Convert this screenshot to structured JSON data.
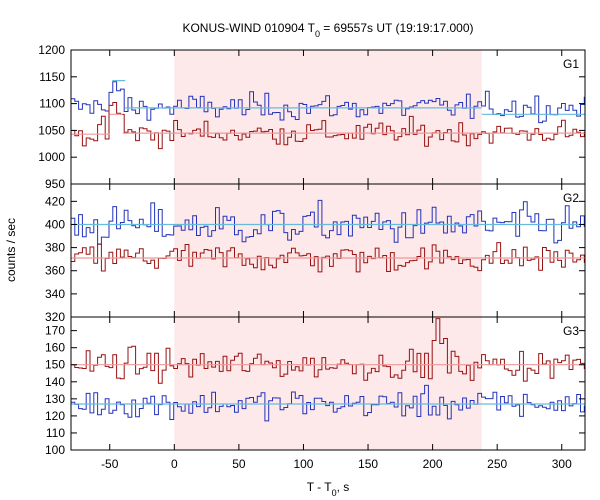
{
  "chart_data": {
    "type": "line",
    "title_main": "KONUS-WIND 010904 T",
    "title_sub": "0",
    "title_rest": " = 69557s UT (19:19:17.000)",
    "ylabel": "counts / sec",
    "xlabel_main": "T - T",
    "xlabel_sub": "0",
    "xlabel_rest": ", s",
    "xlim": [
      -80,
      318
    ],
    "xticks": [
      -50,
      0,
      50,
      100,
      150,
      200,
      250,
      300
    ],
    "shaded_interval": [
      0,
      238
    ],
    "shade_color": "#fde8ea",
    "bin_width": 2.944,
    "panels": [
      {
        "label": "G1",
        "ylim": [
          950,
          1200
        ],
        "yticks": [
          950,
          1000,
          1050,
          1100,
          1150,
          1200
        ],
        "series": [
          {
            "color": "#2233bb",
            "base": 1093,
            "noise": 17,
            "bumps": [
              [
                -50,
                1120
              ],
              [
                -46,
                1140
              ],
              [
                -43,
                1125
              ]
            ]
          },
          {
            "color": "#991111",
            "base": 1045,
            "noise": 16,
            "bumps": [
              [
                -50,
                1075
              ],
              [
                -48,
                1095
              ],
              [
                -47,
                1120
              ],
              [
                -45,
                1100
              ],
              [
                -43,
                1080
              ]
            ]
          }
        ],
        "fits": [
          {
            "color": "#66bbdd",
            "segments": [
              [
                -48,
                -38,
                1143
              ],
              [
                -38,
                238,
                1092
              ],
              [
                238,
                318,
                1080
              ]
            ]
          },
          {
            "color": "#ee9999",
            "segments": [
              [
                -80,
                -50,
                1043
              ],
              [
                -50,
                -40,
                1080
              ],
              [
                -40,
                318,
                1045
              ]
            ]
          }
        ]
      },
      {
        "label": "G2",
        "ylim": [
          320,
          435
        ],
        "yticks": [
          320,
          340,
          360,
          380,
          400,
          420
        ],
        "series": [
          {
            "color": "#2233bb",
            "base": 399,
            "noise": 12,
            "bumps": []
          },
          {
            "color": "#991111",
            "base": 371,
            "noise": 9,
            "bumps": []
          }
        ],
        "fits": [
          {
            "color": "#66bbdd",
            "segments": [
              [
                -80,
                318,
                400
              ]
            ]
          },
          {
            "color": "#ee9999",
            "segments": [
              [
                -80,
                318,
                371
              ]
            ]
          }
        ]
      },
      {
        "label": "G3",
        "ylim": [
          100,
          178
        ],
        "yticks": [
          100,
          110,
          120,
          130,
          140,
          150,
          160,
          170
        ],
        "series": [
          {
            "color": "#991111",
            "base": 150,
            "noise": 6,
            "bumps": [
              [
                200,
                160
              ],
              [
                203,
                175
              ],
              [
                206,
                162
              ]
            ]
          },
          {
            "color": "#2233bb",
            "base": 127,
            "noise": 6,
            "bumps": []
          }
        ],
        "fits": [
          {
            "color": "#ee9999",
            "segments": [
              [
                -80,
                318,
                150
              ]
            ]
          },
          {
            "color": "#66bbdd",
            "segments": [
              [
                -80,
                318,
                127
              ]
            ]
          }
        ]
      }
    ]
  }
}
